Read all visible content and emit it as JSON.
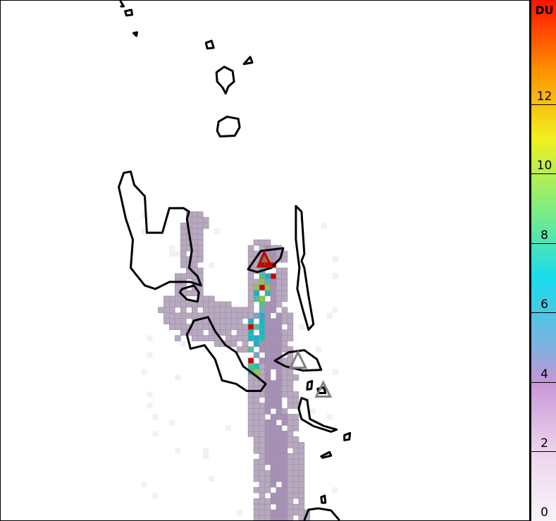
{
  "colorbar": {
    "unit": "DU",
    "ticks": [
      "0",
      "2",
      "4",
      "6",
      "8",
      "10",
      "12"
    ],
    "range": [
      0,
      15
    ],
    "colors": [
      "#f8f4fa",
      "#ecd4ec",
      "#c896d8",
      "#80b0e0",
      "#18dcec",
      "#80ec80",
      "#f0f020",
      "#ff9000",
      "#ff1000"
    ]
  },
  "map": {
    "volcanoes": [
      {
        "name": "active-volcano",
        "color": "#c00000"
      },
      {
        "name": "volcano",
        "color": "#808080"
      },
      {
        "name": "volcano",
        "color": "#808080"
      }
    ]
  }
}
